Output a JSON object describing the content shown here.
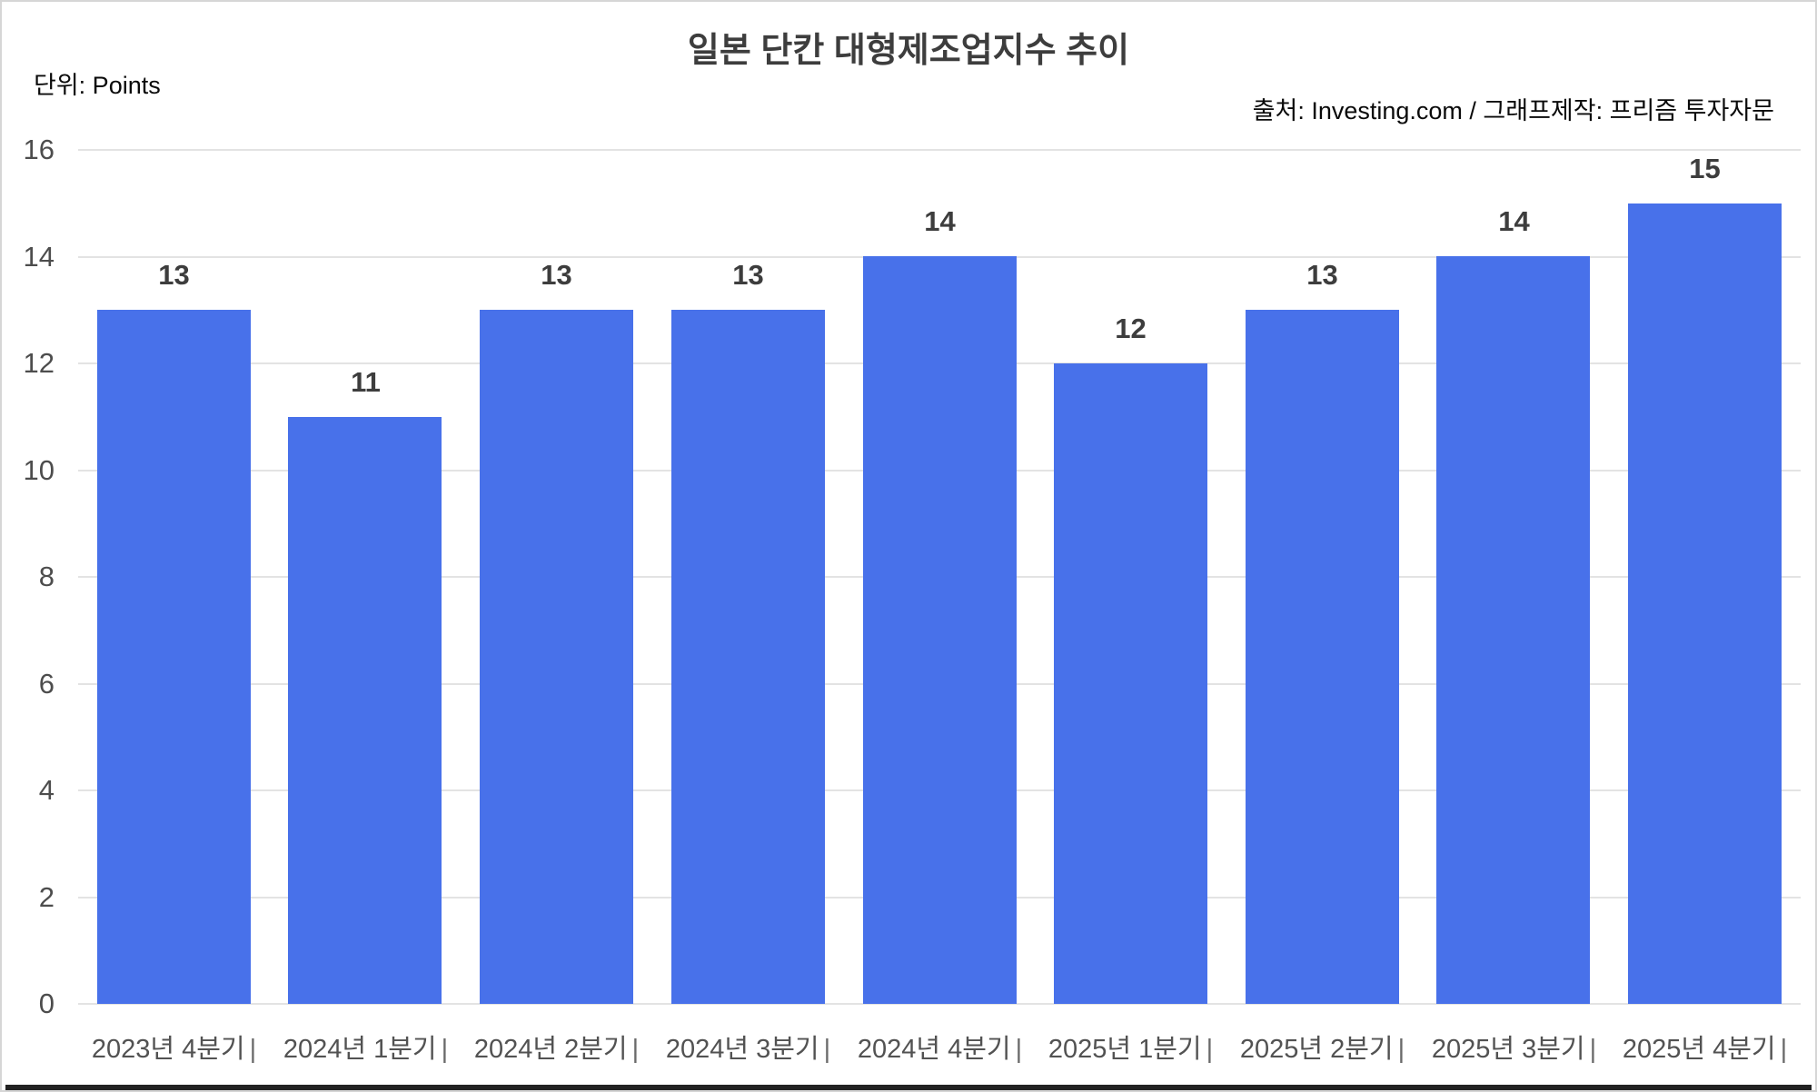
{
  "header": {
    "title": "일본 단칸 대형제조업지수 추이",
    "unit_label": "단위: Points",
    "source_label": "출처: Investing.com / 그래프제작: 프리즘 투자자문"
  },
  "chart_data": {
    "type": "bar",
    "title": "일본 단칸 대형제조업지수 추이",
    "unit": "Points",
    "source": "출처: Investing.com / 그래프제작: 프리즘 투자자문",
    "categories": [
      "2023년 4분기",
      "2024년 1분기",
      "2024년 2분기",
      "2024년 3분기",
      "2024년 4분기",
      "2025년 1분기",
      "2025년 2분기",
      "2025년 3분기",
      "2025년 4분기"
    ],
    "values": [
      13,
      11,
      13,
      13,
      14,
      12,
      13,
      14,
      15
    ],
    "xlabel": "",
    "ylabel": "Points",
    "ylim": [
      0,
      16
    ],
    "yticks": [
      0,
      2,
      4,
      6,
      8,
      10,
      12,
      14,
      16
    ],
    "grid": true,
    "legend": false,
    "x_separator": "|",
    "bar_color": "#4871EA",
    "grid_color": "#e3e3e3",
    "value_label_color": "#3d3d3d",
    "axis_text_color": "#4d4d4d"
  }
}
